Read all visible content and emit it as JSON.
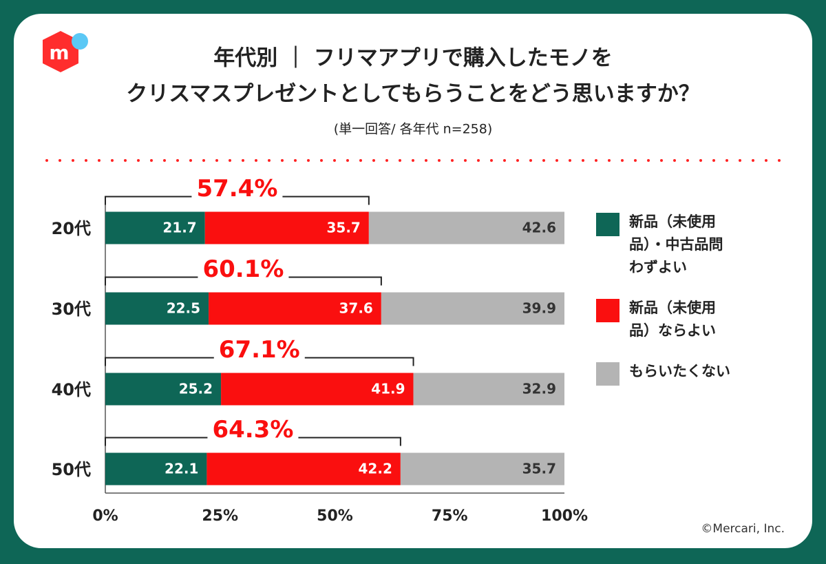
{
  "logo": "m",
  "chart_data": {
    "type": "bar",
    "orientation": "horizontal",
    "stacked": true,
    "title": [
      "年代別 ｜ フリマアプリで購入したモノを",
      "クリスマスプレゼントとしてもらうことをどう思いますか？"
    ],
    "subtitle": "(単一回答/ 各年代 n=258)",
    "categories": [
      "20代",
      "30代",
      "40代",
      "50代"
    ],
    "series": [
      {
        "name": "新品（未使用品）・中古品問わずよい",
        "color": "#0e6656",
        "values": [
          21.7,
          22.5,
          25.2,
          22.1
        ]
      },
      {
        "name": "新品（未使用品）ならよい",
        "color": "#fa0f0f",
        "values": [
          35.7,
          37.6,
          41.9,
          42.2
        ]
      },
      {
        "name": "もらいたくない",
        "color": "#b4b4b4",
        "values": [
          42.6,
          39.9,
          32.9,
          35.7
        ]
      }
    ],
    "annotations": [
      {
        "value": 57.4,
        "label": "57.4%"
      },
      {
        "value": 60.1,
        "label": "60.1%"
      },
      {
        "value": 67.1,
        "label": "67.1%"
      },
      {
        "value": 64.3,
        "label": "64.3%"
      }
    ],
    "xlim": [
      0,
      100
    ],
    "xticks": [
      {
        "value": 0,
        "label": "0%"
      },
      {
        "value": 25,
        "label": "25%"
      },
      {
        "value": 50,
        "label": "50%"
      },
      {
        "value": 75,
        "label": "75%"
      },
      {
        "value": 100,
        "label": "100%"
      }
    ],
    "legend": "right",
    "copyright": "©Mercari, Inc."
  }
}
